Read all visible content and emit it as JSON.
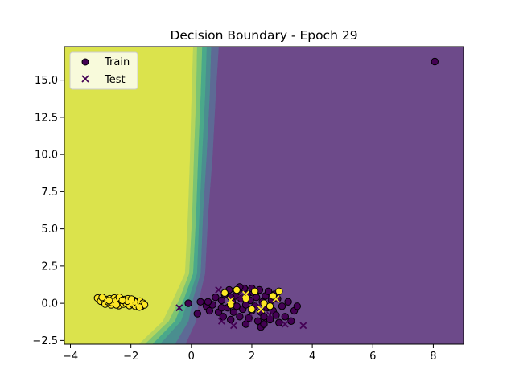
{
  "chart_data": {
    "type": "scatter",
    "title": "Decision Boundary - Epoch 29",
    "xlabel": "",
    "ylabel": "",
    "xlim": [
      -4.2,
      9.0
    ],
    "ylim": [
      -2.75,
      17.25
    ],
    "x_ticks": [
      -4,
      -2,
      0,
      2,
      4,
      6,
      8
    ],
    "y_ticks": [
      -2.5,
      0.0,
      2.5,
      5.0,
      7.5,
      10.0,
      12.5,
      15.0
    ],
    "x_tick_labels": [
      "−4",
      "−2",
      "0",
      "2",
      "4",
      "6",
      "8"
    ],
    "y_tick_labels": [
      "−2.5",
      "0.0",
      "2.5",
      "5.0",
      "7.5",
      "10.0",
      "12.5",
      "15.0"
    ],
    "grid": false,
    "legend": {
      "position": "top-left",
      "entries": [
        {
          "label": "Train",
          "marker": "circle"
        },
        {
          "label": "Test",
          "marker": "x"
        }
      ]
    },
    "colors": {
      "class0": "#440154",
      "class1": "#fde725",
      "region_levels": [
        "#6d4a8a",
        "#5d6a95",
        "#4a8e8f",
        "#4aa98a",
        "#7cc472",
        "#b5d55c",
        "#dbe34c"
      ]
    },
    "boundary_levels": [
      {
        "level": 0,
        "points": [
          [
            9.0,
            17.25
          ],
          [
            9.0,
            -2.75
          ],
          [
            -0.2,
            -2.75
          ],
          [
            0.15,
            -1.2
          ],
          [
            0.25,
            0.3
          ],
          [
            0.45,
            2.0
          ],
          [
            0.55,
            6.0
          ],
          [
            0.7,
            10.0
          ],
          [
            0.8,
            14.0
          ],
          [
            0.9,
            17.25
          ]
        ]
      },
      {
        "level": 1,
        "points": [
          [
            0.9,
            17.25
          ],
          [
            0.8,
            14.0
          ],
          [
            0.7,
            10.0
          ],
          [
            0.55,
            6.0
          ],
          [
            0.45,
            2.0
          ],
          [
            0.25,
            0.3
          ],
          [
            0.15,
            -1.2
          ],
          [
            -0.2,
            -2.75
          ],
          [
            -0.55,
            -2.75
          ],
          [
            -0.1,
            -1.2
          ],
          [
            0.05,
            0.3
          ],
          [
            0.3,
            2.0
          ],
          [
            0.38,
            6.0
          ],
          [
            0.5,
            10.0
          ],
          [
            0.6,
            14.0
          ],
          [
            0.65,
            17.25
          ]
        ]
      },
      {
        "level": 2,
        "points": [
          [
            0.65,
            17.25
          ],
          [
            0.6,
            14.0
          ],
          [
            0.5,
            10.0
          ],
          [
            0.38,
            6.0
          ],
          [
            0.3,
            2.0
          ],
          [
            0.05,
            0.3
          ],
          [
            -0.1,
            -1.2
          ],
          [
            -0.55,
            -2.75
          ],
          [
            -1.05,
            -2.75
          ],
          [
            -0.35,
            -1.2
          ],
          [
            -0.1,
            0.3
          ],
          [
            0.18,
            2.0
          ],
          [
            0.26,
            6.0
          ],
          [
            0.35,
            10.0
          ],
          [
            0.45,
            14.0
          ],
          [
            0.5,
            17.25
          ]
        ]
      },
      {
        "level": 3,
        "points": [
          [
            0.5,
            17.25
          ],
          [
            0.45,
            14.0
          ],
          [
            0.35,
            10.0
          ],
          [
            0.26,
            6.0
          ],
          [
            0.18,
            2.0
          ],
          [
            -0.1,
            0.3
          ],
          [
            -0.35,
            -1.2
          ],
          [
            -1.05,
            -2.75
          ],
          [
            -1.3,
            -2.75
          ],
          [
            -0.55,
            -1.2
          ],
          [
            -0.25,
            0.3
          ],
          [
            0.05,
            2.0
          ],
          [
            0.15,
            6.0
          ],
          [
            0.22,
            10.0
          ],
          [
            0.3,
            14.0
          ],
          [
            0.35,
            17.25
          ]
        ]
      },
      {
        "level": 4,
        "points": [
          [
            0.35,
            17.25
          ],
          [
            0.3,
            14.0
          ],
          [
            0.22,
            10.0
          ],
          [
            0.15,
            6.0
          ],
          [
            0.05,
            2.0
          ],
          [
            -0.25,
            0.3
          ],
          [
            -0.55,
            -1.2
          ],
          [
            -1.3,
            -2.75
          ],
          [
            -1.55,
            -2.75
          ],
          [
            -0.75,
            -1.2
          ],
          [
            -0.4,
            0.3
          ],
          [
            -0.08,
            2.0
          ],
          [
            0.02,
            6.0
          ],
          [
            0.08,
            10.0
          ],
          [
            0.15,
            14.0
          ],
          [
            0.18,
            17.25
          ]
        ]
      },
      {
        "level": 5,
        "points": [
          [
            0.18,
            17.25
          ],
          [
            0.15,
            14.0
          ],
          [
            0.08,
            10.0
          ],
          [
            0.02,
            6.0
          ],
          [
            -0.08,
            2.0
          ],
          [
            -0.4,
            0.3
          ],
          [
            -0.75,
            -1.2
          ],
          [
            -1.55,
            -2.75
          ],
          [
            -1.75,
            -2.75
          ],
          [
            -0.95,
            -1.2
          ],
          [
            -0.6,
            0.3
          ],
          [
            -0.22,
            2.0
          ],
          [
            -0.12,
            6.0
          ],
          [
            -0.05,
            10.0
          ],
          [
            0.0,
            14.0
          ],
          [
            0.05,
            17.25
          ]
        ]
      },
      {
        "level": 6,
        "points": [
          [
            0.05,
            17.25
          ],
          [
            0.0,
            14.0
          ],
          [
            -0.05,
            10.0
          ],
          [
            -0.12,
            6.0
          ],
          [
            -0.22,
            2.0
          ],
          [
            -0.6,
            0.3
          ],
          [
            -0.95,
            -1.2
          ],
          [
            -1.75,
            -2.75
          ],
          [
            -4.2,
            -2.75
          ],
          [
            -4.2,
            17.25
          ]
        ]
      }
    ],
    "series": [
      {
        "name": "Train",
        "marker": "circle",
        "points": [
          [
            -3.1,
            0.35,
            1
          ],
          [
            -3.0,
            0.15,
            1
          ],
          [
            -2.9,
            0.3,
            1
          ],
          [
            -2.85,
            -0.05,
            1
          ],
          [
            -2.8,
            0.25,
            1
          ],
          [
            -2.75,
            0.1,
            1
          ],
          [
            -2.7,
            0.3,
            1
          ],
          [
            -2.65,
            -0.1,
            1
          ],
          [
            -2.6,
            0.2,
            1
          ],
          [
            -2.55,
            0.35,
            1
          ],
          [
            -2.5,
            0.05,
            1
          ],
          [
            -2.45,
            0.25,
            1
          ],
          [
            -2.4,
            -0.15,
            1
          ],
          [
            -2.35,
            0.3,
            1
          ],
          [
            -2.3,
            0.1,
            1
          ],
          [
            -2.25,
            -0.05,
            1
          ],
          [
            -2.2,
            0.25,
            1
          ],
          [
            -2.15,
            0.0,
            1
          ],
          [
            -2.1,
            0.3,
            1
          ],
          [
            -2.05,
            -0.15,
            1
          ],
          [
            -2.0,
            0.15,
            1
          ],
          [
            -1.95,
            -0.05,
            1
          ],
          [
            -1.9,
            0.2,
            1
          ],
          [
            -1.85,
            -0.2,
            1
          ],
          [
            -1.8,
            0.05,
            1
          ],
          [
            -1.75,
            -0.1,
            1
          ],
          [
            -1.7,
            0.15,
            1
          ],
          [
            -1.65,
            -0.2,
            1
          ],
          [
            -1.6,
            0.0,
            1
          ],
          [
            -1.55,
            -0.1,
            1
          ],
          [
            -2.95,
            0.4,
            1
          ],
          [
            -2.62,
            0.05,
            1
          ],
          [
            -2.38,
            0.4,
            1
          ],
          [
            -2.12,
            0.15,
            1
          ],
          [
            -1.88,
            0.1,
            1
          ],
          [
            -2.72,
            0.18,
            1
          ],
          [
            -2.48,
            -0.1,
            1
          ],
          [
            -2.28,
            0.2,
            1
          ],
          [
            -1.98,
            0.28,
            1
          ],
          [
            -1.72,
            -0.25,
            1
          ],
          [
            -0.1,
            0.0,
            0
          ],
          [
            0.2,
            -0.7,
            0
          ],
          [
            0.3,
            0.1,
            0
          ],
          [
            0.5,
            -0.2,
            0
          ],
          [
            0.6,
            -0.5,
            0
          ],
          [
            0.7,
            -0.1,
            0
          ],
          [
            0.8,
            0.4,
            0
          ],
          [
            0.9,
            -0.6,
            0
          ],
          [
            1.0,
            0.2,
            0
          ],
          [
            1.05,
            -0.9,
            0
          ],
          [
            1.1,
            0.6,
            0
          ],
          [
            1.2,
            -0.3,
            0
          ],
          [
            1.25,
            0.9,
            0
          ],
          [
            1.3,
            -1.1,
            0
          ],
          [
            1.35,
            0.1,
            0
          ],
          [
            1.4,
            -0.6,
            0
          ],
          [
            1.45,
            0.5,
            0
          ],
          [
            1.5,
            -0.2,
            0
          ],
          [
            1.55,
            0.8,
            0
          ],
          [
            1.6,
            -0.9,
            0
          ],
          [
            1.65,
            0.3,
            0
          ],
          [
            1.7,
            -0.4,
            0
          ],
          [
            1.75,
            1.0,
            0
          ],
          [
            1.8,
            -0.1,
            0
          ],
          [
            1.85,
            0.6,
            0
          ],
          [
            1.9,
            -1.0,
            0
          ],
          [
            1.95,
            0.2,
            0
          ],
          [
            2.0,
            -0.5,
            0
          ],
          [
            2.05,
            0.7,
            0
          ],
          [
            2.1,
            -0.2,
            0
          ],
          [
            2.15,
            0.4,
            0
          ],
          [
            2.2,
            -1.2,
            0
          ],
          [
            2.25,
            0.9,
            0
          ],
          [
            2.3,
            -0.6,
            0
          ],
          [
            2.35,
            0.1,
            0
          ],
          [
            2.4,
            -0.9,
            0
          ],
          [
            2.45,
            0.5,
            0
          ],
          [
            2.5,
            -0.3,
            0
          ],
          [
            2.55,
            0.8,
            0
          ],
          [
            2.6,
            -1.1,
            0
          ],
          [
            2.65,
            0.2,
            0
          ],
          [
            2.7,
            -0.5,
            0
          ],
          [
            2.75,
            0.6,
            0
          ],
          [
            2.8,
            -0.8,
            0
          ],
          [
            2.85,
            0.3,
            0
          ],
          [
            2.9,
            -1.3,
            0
          ],
          [
            3.0,
            -0.2,
            0
          ],
          [
            3.1,
            -0.9,
            0
          ],
          [
            3.2,
            0.1,
            0
          ],
          [
            3.3,
            -1.2,
            0
          ],
          [
            3.4,
            -0.5,
            0
          ],
          [
            3.5,
            -0.2,
            0
          ],
          [
            2.3,
            -1.6,
            0
          ],
          [
            1.6,
            1.1,
            0
          ],
          [
            1.0,
            -0.3,
            0
          ],
          [
            0.55,
            0.1,
            0
          ],
          [
            1.3,
            0.4,
            0
          ],
          [
            2.0,
            1.0,
            0
          ],
          [
            2.4,
            -1.4,
            0
          ],
          [
            1.8,
            -1.4,
            0
          ],
          [
            1.5,
            0.9,
            1
          ],
          [
            1.8,
            0.3,
            1
          ],
          [
            2.1,
            0.8,
            1
          ],
          [
            2.4,
            0.0,
            1
          ],
          [
            2.7,
            0.5,
            1
          ],
          [
            1.3,
            -0.1,
            1
          ],
          [
            2.0,
            -0.4,
            1
          ],
          [
            2.9,
            0.8,
            1
          ],
          [
            1.1,
            0.7,
            1
          ],
          [
            2.6,
            -0.2,
            1
          ],
          [
            8.05,
            16.25,
            0
          ]
        ]
      },
      {
        "name": "Test",
        "marker": "x",
        "points": [
          [
            -0.4,
            -0.3,
            0
          ],
          [
            1.0,
            -1.2,
            0
          ],
          [
            1.4,
            -1.5,
            0
          ],
          [
            2.2,
            -0.2,
            0
          ],
          [
            3.1,
            -1.4,
            0
          ],
          [
            3.7,
            -1.5,
            0
          ],
          [
            1.6,
            0.4,
            0
          ],
          [
            2.6,
            -0.8,
            0
          ],
          [
            0.9,
            0.9,
            0
          ],
          [
            1.9,
            -1.0,
            0
          ],
          [
            2.3,
            -0.4,
            1
          ],
          [
            1.3,
            0.2,
            1
          ],
          [
            2.8,
            0.3,
            1
          ],
          [
            1.8,
            0.6,
            1
          ],
          [
            -2.5,
            0.1,
            1
          ],
          [
            -2.0,
            0.0,
            1
          ],
          [
            -1.8,
            -0.1,
            1
          ],
          [
            -2.8,
            0.2,
            1
          ]
        ]
      }
    ]
  }
}
